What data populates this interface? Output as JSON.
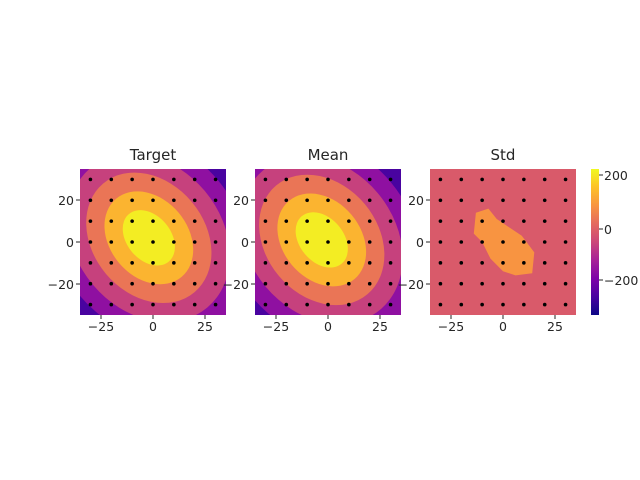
{
  "chart_data": [
    {
      "type": "heatmap",
      "title": "Target",
      "xlim": [
        -35,
        35
      ],
      "ylim": [
        -35,
        35
      ],
      "xticks": [
        -25,
        0,
        25
      ],
      "yticks": [
        20,
        0,
        -20
      ],
      "xtick_labels": [
        "−25",
        "0",
        "25"
      ],
      "ytick_labels": [
        "20",
        "0",
        "−20"
      ],
      "levels": [
        -300,
        -200,
        -100,
        0,
        100,
        200,
        250
      ],
      "center": [
        -2,
        2
      ],
      "grid": false,
      "points_x": [
        -30,
        -20,
        -10,
        0,
        10,
        20,
        30
      ],
      "points_y": [
        30,
        20,
        10,
        0,
        -10,
        -20,
        -30
      ]
    },
    {
      "type": "heatmap",
      "title": "Mean",
      "xlim": [
        -35,
        35
      ],
      "ylim": [
        -35,
        35
      ],
      "xticks": [
        -25,
        0,
        25
      ],
      "yticks": [
        20,
        0,
        -20
      ],
      "xtick_labels": [
        "−25",
        "0",
        "25"
      ],
      "ytick_labels": [
        "20",
        "0",
        "−20"
      ],
      "levels": [
        -300,
        -200,
        -100,
        0,
        100,
        200,
        250
      ],
      "center": [
        -3,
        1
      ],
      "grid": false,
      "points_x": [
        -30,
        -20,
        -10,
        0,
        10,
        20,
        30
      ],
      "points_y": [
        30,
        20,
        10,
        0,
        -10,
        -20,
        -30
      ]
    },
    {
      "type": "heatmap",
      "title": "Std",
      "xlim": [
        -35,
        35
      ],
      "ylim": [
        -35,
        35
      ],
      "xticks": [
        -25,
        0,
        25
      ],
      "yticks": [
        20,
        0,
        -20
      ],
      "xtick_labels": [
        "−25",
        "0",
        "25"
      ],
      "ytick_labels": [
        "20",
        "0",
        "−20"
      ],
      "background_value": 0,
      "blob_value": 100,
      "blob_outline": [
        [
          -13,
          14
        ],
        [
          -7,
          16
        ],
        [
          -3,
          11
        ],
        [
          3,
          7
        ],
        [
          9,
          3
        ],
        [
          15,
          -5
        ],
        [
          14,
          -15
        ],
        [
          6,
          -16
        ],
        [
          0,
          -14
        ],
        [
          -6,
          -8
        ],
        [
          -10,
          0
        ],
        [
          -14,
          4
        ]
      ],
      "grid": false,
      "points_x": [
        -30,
        -20,
        -10,
        0,
        10,
        20,
        30
      ],
      "points_y": [
        30,
        20,
        10,
        0,
        -10,
        -20,
        -30
      ]
    }
  ],
  "colorbar": {
    "colormap": "plasma",
    "range": [
      -320,
      240
    ],
    "ticks": [
      200,
      0,
      -200
    ],
    "tick_labels": [
      "200",
      "0",
      "−200"
    ]
  }
}
